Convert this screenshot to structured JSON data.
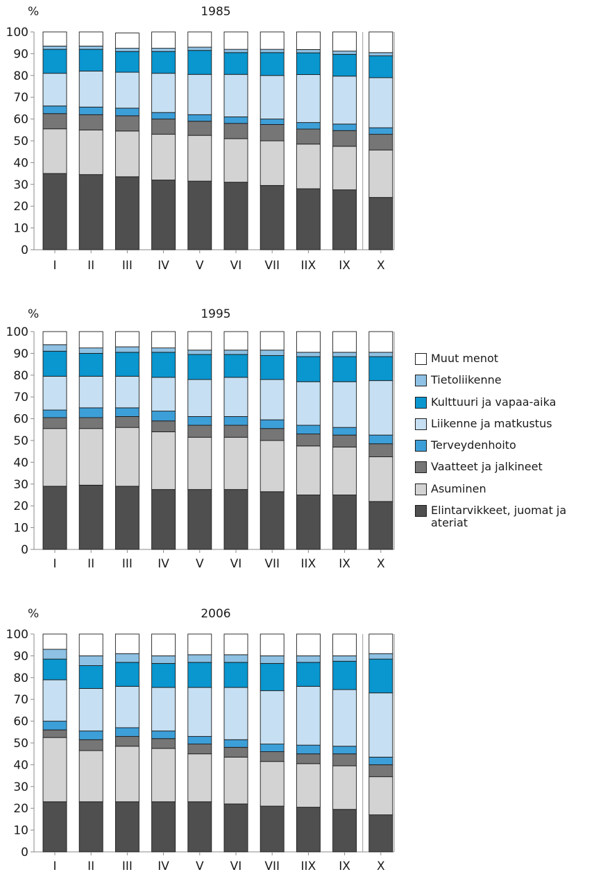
{
  "chart_data": [
    {
      "type": "bar",
      "stacked": true,
      "title": "1985",
      "ylabel": "%",
      "ylim": [
        0,
        100
      ],
      "yticks": [
        0,
        10,
        20,
        30,
        40,
        50,
        60,
        70,
        80,
        90,
        100
      ],
      "categories": [
        "I",
        "II",
        "III",
        "IV",
        "V",
        "VI",
        "VII",
        "IIX",
        "IX",
        "X"
      ],
      "separator_before_last": true,
      "series": [
        {
          "name": "Elintarvikkeet, juomat ja ateriat",
          "values": [
            35,
            34.5,
            33.5,
            32,
            31.5,
            31,
            29.5,
            28,
            27.5,
            24
          ]
        },
        {
          "name": "Asuminen",
          "values": [
            20.5,
            20.5,
            21,
            21,
            21,
            20,
            20.5,
            20.5,
            20,
            21.8
          ]
        },
        {
          "name": "Vaatteet ja jalkineet",
          "values": [
            7,
            7,
            7,
            7,
            6.5,
            7,
            7.5,
            6.9,
            7.2,
            7.2
          ]
        },
        {
          "name": "Terveydenhoito",
          "values": [
            3.5,
            3.5,
            3.5,
            3,
            3,
            3,
            2.5,
            3,
            3,
            3
          ]
        },
        {
          "name": "Liikenne ja matkustus",
          "values": [
            15,
            16.5,
            16.5,
            18,
            18.5,
            19.5,
            20,
            22,
            22,
            23
          ]
        },
        {
          "name": "Kulttuuri ja vapaa-aika",
          "values": [
            11,
            10,
            9.5,
            10,
            11,
            10,
            10.5,
            10,
            10,
            10
          ]
        },
        {
          "name": "Tietoliikenne",
          "values": [
            1.5,
            1.5,
            1.5,
            1.5,
            1.5,
            1.5,
            1.5,
            1.5,
            1.5,
            1.5
          ]
        },
        {
          "name": "Muut menot",
          "values": [
            6.5,
            6.5,
            7,
            7.5,
            7,
            8,
            8,
            8.1,
            8.8,
            9.5
          ]
        }
      ]
    },
    {
      "type": "bar",
      "stacked": true,
      "title": "1995",
      "ylabel": "%",
      "ylim": [
        0,
        100
      ],
      "yticks": [
        0,
        10,
        20,
        30,
        40,
        50,
        60,
        70,
        80,
        90,
        100
      ],
      "categories": [
        "I",
        "II",
        "III",
        "IV",
        "V",
        "VI",
        "VII",
        "IIX",
        "IX",
        "X"
      ],
      "separator_before_last": false,
      "series": [
        {
          "name": "Elintarvikkeet, juomat ja ateriat",
          "values": [
            29,
            29.5,
            29,
            27.5,
            27.5,
            27.5,
            26.5,
            25,
            25,
            22
          ]
        },
        {
          "name": "Asuminen",
          "values": [
            26.5,
            26,
            27,
            26.5,
            24,
            24,
            23.5,
            22.5,
            22,
            20.5
          ]
        },
        {
          "name": "Vaatteet ja jalkineet",
          "values": [
            5,
            5,
            5,
            5,
            5.5,
            5.5,
            5.5,
            5.5,
            5.5,
            6
          ]
        },
        {
          "name": "Terveydenhoito",
          "values": [
            3.5,
            4.5,
            4,
            4.5,
            4,
            4,
            4,
            4,
            3.5,
            4
          ]
        },
        {
          "name": "Liikenne ja matkustus",
          "values": [
            15.5,
            14.5,
            14.5,
            15.5,
            17,
            18,
            18.5,
            20,
            21,
            25
          ]
        },
        {
          "name": "Kulttuuri ja vapaa-aika",
          "values": [
            11.5,
            10.5,
            11,
            11.5,
            11.5,
            10.5,
            11,
            11.5,
            11.5,
            11
          ]
        },
        {
          "name": "Tietoliikenne",
          "values": [
            3,
            2.5,
            2.5,
            2,
            2,
            2,
            2.5,
            2,
            2,
            2
          ]
        },
        {
          "name": "Muut menot",
          "values": [
            6,
            7.5,
            7,
            7.5,
            8.5,
            8.5,
            8.5,
            9.5,
            9.5,
            9.5
          ]
        }
      ]
    },
    {
      "type": "bar",
      "stacked": true,
      "title": "2006",
      "ylabel": "%",
      "ylim": [
        0,
        100
      ],
      "yticks": [
        0,
        10,
        20,
        30,
        40,
        50,
        60,
        70,
        80,
        90,
        100
      ],
      "categories": [
        "I",
        "II",
        "III",
        "IV",
        "V",
        "VI",
        "VII",
        "IIX",
        "IX",
        "X"
      ],
      "separator_before_last": true,
      "series": [
        {
          "name": "Elintarvikkeet, juomat ja ateriat",
          "values": [
            23,
            23,
            23,
            23,
            23,
            22,
            21,
            20.5,
            19.5,
            17
          ]
        },
        {
          "name": "Asuminen",
          "values": [
            29.5,
            23.5,
            25.5,
            24.5,
            22,
            21.5,
            20.5,
            20,
            20,
            17.5
          ]
        },
        {
          "name": "Vaatteet ja jalkineet",
          "values": [
            3.5,
            5,
            4.5,
            4.5,
            4.5,
            4.5,
            4.5,
            4.5,
            5.5,
            5.5
          ]
        },
        {
          "name": "Terveydenhoito",
          "values": [
            4,
            4,
            4,
            3.5,
            3.5,
            3.5,
            3.5,
            4,
            3.5,
            3.5
          ]
        },
        {
          "name": "Liikenne ja matkustus",
          "values": [
            19,
            19.5,
            19,
            20,
            22.5,
            24,
            24.5,
            27,
            26,
            29.5
          ]
        },
        {
          "name": "Kulttuuri ja vapaa-aika",
          "values": [
            9.5,
            10.5,
            11,
            11,
            11.5,
            11.5,
            12.5,
            11,
            13,
            15.5
          ]
        },
        {
          "name": "Tietoliikenne",
          "values": [
            4.5,
            4.5,
            4,
            3.5,
            3.5,
            3.5,
            3.5,
            3,
            2.5,
            2.5
          ]
        },
        {
          "name": "Muut menot",
          "values": [
            7,
            10,
            9,
            10,
            9.5,
            9.5,
            10,
            10,
            10,
            9
          ]
        }
      ]
    }
  ],
  "legend": {
    "placement": "right",
    "items": [
      {
        "label": "Muut menot",
        "color": "#ffffff"
      },
      {
        "label": "Tietoliikenne",
        "color": "#8ec1e3"
      },
      {
        "label": "Kulttuuri ja vapaa-aika",
        "color": "#0a96cf"
      },
      {
        "label": "Liikenne ja matkustus",
        "color": "#c6dff2"
      },
      {
        "label": "Terveydenhoito",
        "color": "#3d9fd8"
      },
      {
        "label": "Vaatteet ja jalkineet",
        "color": "#767676"
      },
      {
        "label": "Asuminen",
        "color": "#d3d3d3"
      },
      {
        "label": "Elintarvikkeet, juomat ja ateriat",
        "color": "#4f4f4f"
      }
    ]
  },
  "series_colors": {
    "Elintarvikkeet, juomat ja ateriat": "#4f4f4f",
    "Asuminen": "#d3d3d3",
    "Vaatteet ja jalkineet": "#767676",
    "Terveydenhoito": "#3d9fd8",
    "Liikenne ja matkustus": "#c6dff2",
    "Kulttuuri ja vapaa-aika": "#0a96cf",
    "Tietoliikenne": "#8ec1e3",
    "Muut menot": "#ffffff"
  }
}
